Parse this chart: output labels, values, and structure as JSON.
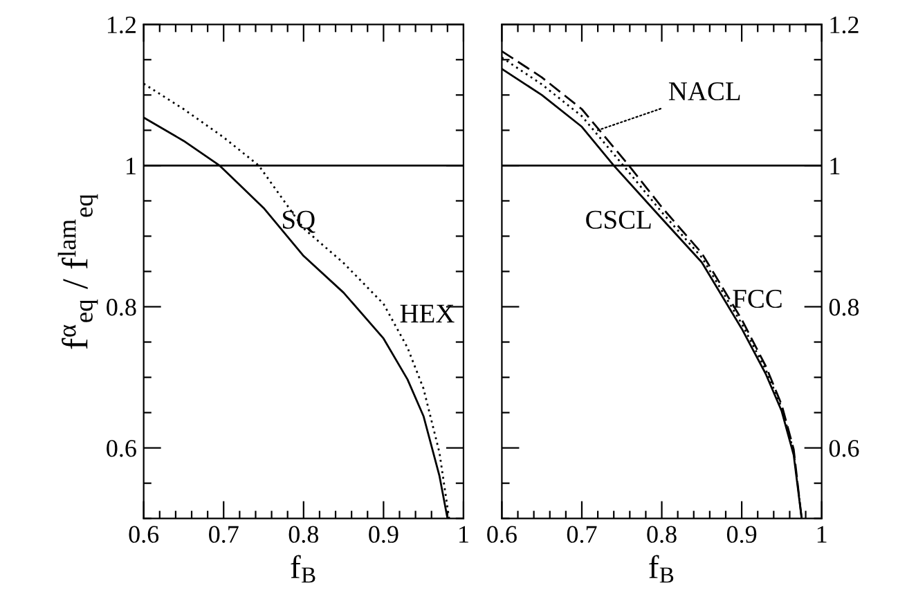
{
  "chart_data": [
    {
      "type": "line",
      "xlabel": "f$_{B}$",
      "ylabel": "f$^{α}$$_{eq}$ / f$^{lam}$$_{eq}$",
      "xlim": [
        0.6,
        1
      ],
      "ylim": [
        0.5,
        1.2
      ],
      "xticks": [
        0.6,
        {
          "value": 0.62,
          "label": null
        },
        {
          "value": 0.64,
          "label": null
        },
        {
          "value": 0.66,
          "label": null
        },
        {
          "value": 0.68,
          "label": null
        },
        0.7,
        {
          "value": 0.72,
          "label": null
        },
        {
          "value": 0.74,
          "label": null
        },
        {
          "value": 0.76,
          "label": null
        },
        {
          "value": 0.78,
          "label": null
        },
        0.8,
        {
          "value": 0.82,
          "label": null
        },
        {
          "value": 0.84,
          "label": null
        },
        {
          "value": 0.86,
          "label": null
        },
        {
          "value": 0.88,
          "label": null
        },
        0.9,
        {
          "value": 0.92,
          "label": null
        },
        {
          "value": 0.94,
          "label": null
        },
        {
          "value": 0.96,
          "label": null
        },
        {
          "value": 0.98,
          "label": null
        },
        1
      ],
      "yticks": [
        {
          "value": 0.5,
          "label": null
        },
        {
          "value": 0.55,
          "label": null
        },
        0.6,
        {
          "value": 0.65,
          "label": null
        },
        {
          "value": 0.7,
          "label": null
        },
        {
          "value": 0.75,
          "label": null
        },
        0.8,
        {
          "value": 0.85,
          "label": null
        },
        {
          "value": 0.9,
          "label": null
        },
        {
          "value": 0.95,
          "label": null
        },
        1,
        {
          "value": 1.05,
          "label": null
        },
        {
          "value": 1.1,
          "label": null
        },
        {
          "value": 1.15,
          "label": null
        },
        1.2
      ],
      "ref_lines": [
        {
          "axis": "y",
          "value": 1,
          "color": "#000000"
        }
      ],
      "series": [
        {
          "color": "#000000",
          "line_style": "solid",
          "x": [
            0.6,
            0.65,
            0.695,
            0.75,
            0.8,
            0.85,
            0.9,
            0.93,
            0.95,
            0.97,
            0.98
          ],
          "values": [
            1.068,
            1.035,
            1.0,
            0.94,
            0.872,
            0.82,
            0.755,
            0.697,
            0.645,
            0.56,
            0.5
          ]
        },
        {
          "color": "#000000",
          "line_style": "dotted",
          "x": [
            0.6,
            0.65,
            0.7,
            0.744,
            0.8,
            0.85,
            0.9,
            0.93,
            0.95,
            0.97,
            0.982
          ],
          "values": [
            1.116,
            1.08,
            1.04,
            1.0,
            0.911,
            0.862,
            0.804,
            0.742,
            0.684,
            0.593,
            0.5
          ]
        }
      ],
      "annotations": [
        "SQ",
        "HEX"
      ]
    },
    {
      "type": "line",
      "xlabel": "f$_{B}$",
      "xlim": [
        0.6,
        1
      ],
      "ylim": [
        0.5,
        1.2
      ],
      "yticks": [
        {
          "value": 0.5,
          "label": null
        },
        {
          "value": 0.55,
          "label": null
        },
        0.6,
        {
          "value": 0.65,
          "label": null
        },
        {
          "value": 0.7,
          "label": null
        },
        {
          "value": 0.75,
          "label": null
        },
        0.8,
        {
          "value": 0.85,
          "label": null
        },
        {
          "value": 0.9,
          "label": null
        },
        {
          "value": 0.95,
          "label": null
        },
        1,
        {
          "value": 1.05,
          "label": null
        },
        {
          "value": 1.1,
          "label": null
        },
        {
          "value": 1.15,
          "label": null
        },
        1.2
      ],
      "xticks": [
        0.6,
        {
          "value": 0.62,
          "label": null
        },
        {
          "value": 0.64,
          "label": null
        },
        {
          "value": 0.66,
          "label": null
        },
        {
          "value": 0.68,
          "label": null
        },
        0.7,
        {
          "value": 0.72,
          "label": null
        },
        {
          "value": 0.74,
          "label": null
        },
        {
          "value": 0.76,
          "label": null
        },
        {
          "value": 0.78,
          "label": null
        },
        0.8,
        {
          "value": 0.82,
          "label": null
        },
        {
          "value": 0.84,
          "label": null
        },
        {
          "value": 0.86,
          "label": null
        },
        {
          "value": 0.88,
          "label": null
        },
        0.9,
        {
          "value": 0.92,
          "label": null
        },
        {
          "value": 0.94,
          "label": null
        },
        {
          "value": 0.96,
          "label": null
        },
        {
          "value": 0.98,
          "label": null
        },
        1
      ],
      "ref_lines": [
        {
          "axis": "y",
          "value": 1,
          "color": "#000000"
        }
      ],
      "series": [
        {
          "color": "#000000",
          "line_style": "solid",
          "x": [
            0.6,
            0.65,
            0.7,
            0.74,
            0.8,
            0.85,
            0.9,
            0.93,
            0.95,
            0.965,
            0.975
          ],
          "values": [
            1.137,
            1.1,
            1.055,
            1.0,
            0.925,
            0.863,
            0.769,
            0.705,
            0.652,
            0.59,
            0.5
          ]
        },
        {
          "color": "#000000",
          "line_style": "dotted",
          "x": [
            0.6,
            0.65,
            0.7,
            0.752,
            0.8,
            0.85,
            0.9,
            0.93,
            0.95,
            0.965,
            0.975
          ],
          "values": [
            1.153,
            1.115,
            1.07,
            1.0,
            0.934,
            0.87,
            0.776,
            0.711,
            0.657,
            0.595,
            0.5
          ]
        },
        {
          "color": "#000000",
          "line_style": "dashed",
          "x": [
            0.6,
            0.65,
            0.7,
            0.759,
            0.8,
            0.85,
            0.9,
            0.93,
            0.95,
            0.965,
            0.975
          ],
          "values": [
            1.162,
            1.125,
            1.08,
            1.0,
            0.941,
            0.876,
            0.782,
            0.716,
            0.661,
            0.598,
            0.5
          ]
        }
      ],
      "annotations": [
        {
          "text": "NACL",
          "x": 0.72,
          "y": 1.05
        },
        "CSCL",
        "FCC"
      ]
    }
  ]
}
